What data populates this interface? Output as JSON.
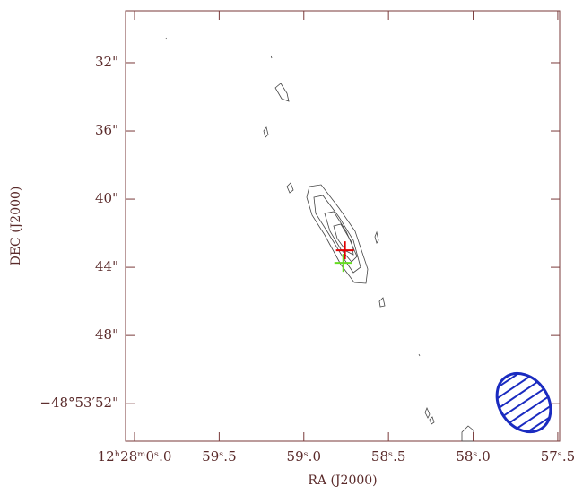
{
  "chart_data": {
    "type": "scatter",
    "x_label": "RA (J2000)",
    "y_label": "DEC (J2000)",
    "xlim": [
      60.053,
      57.489
    ],
    "ylim": [
      54.2,
      28.95
    ],
    "xticks": [
      {
        "value": 60.0,
        "label": "12ʰ28ᵐ0ˢ.0"
      },
      {
        "value": 59.5,
        "label": "59ˢ.5"
      },
      {
        "value": 59.0,
        "label": "59ˢ.0"
      },
      {
        "value": 58.5,
        "label": "58ˢ.5"
      },
      {
        "value": 58.0,
        "label": "58ˢ.0"
      },
      {
        "value": 57.5,
        "label": "57ˢ.5"
      }
    ],
    "yticks": [
      {
        "value": 32,
        "label": "32\""
      },
      {
        "value": 36,
        "label": "36\""
      },
      {
        "value": 40,
        "label": "40\""
      },
      {
        "value": 44,
        "label": "44\""
      },
      {
        "value": 48,
        "label": "48\""
      },
      {
        "value": 52,
        "label": "−48°53′52\""
      }
    ],
    "series": [
      {
        "color": "#e00000",
        "x": [
          58.757
        ],
        "values": [
          43.0
        ]
      },
      {
        "color": "#66dd22",
        "x": [
          58.767
        ],
        "values": [
          43.74
        ]
      }
    ]
  }
}
